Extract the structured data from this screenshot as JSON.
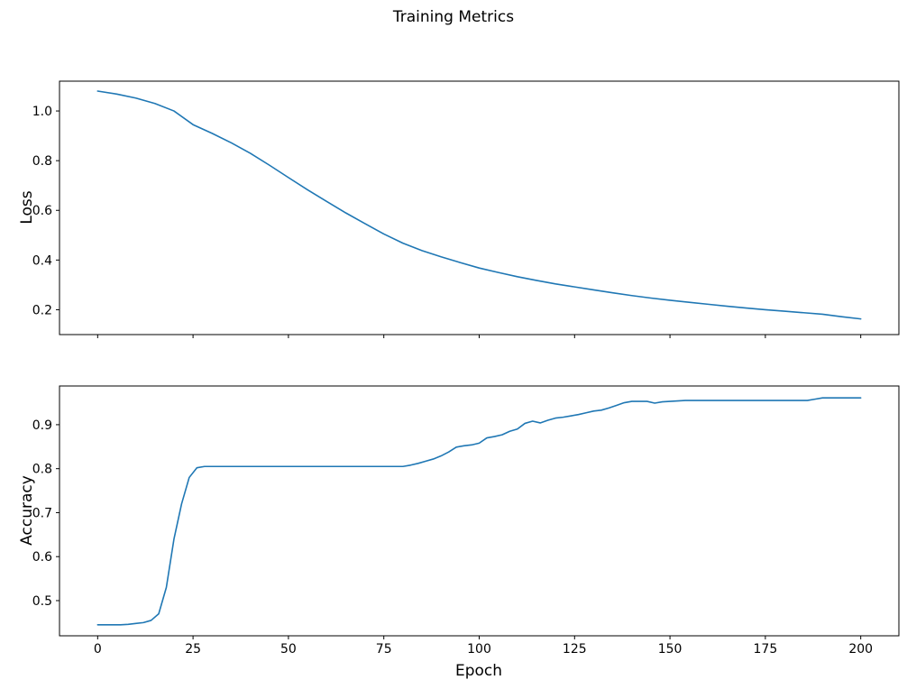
{
  "figure": {
    "title": "Training Metrics",
    "background": "#ffffff",
    "text_color": "#000000",
    "spine_color": "#000000",
    "line_color": "#1f77b4"
  },
  "chart_data": [
    {
      "type": "line",
      "name": "loss",
      "title": "",
      "xlabel": "",
      "ylabel": "Loss",
      "legend": "none",
      "grid": false,
      "line_color": "#1f77b4",
      "xlim": [
        -10,
        210
      ],
      "ylim": [
        0.1,
        1.12
      ],
      "xticks": [
        0,
        25,
        50,
        75,
        100,
        125,
        150,
        175,
        200
      ],
      "xtick_labels": [],
      "yticks": [
        0.2,
        0.4,
        0.6,
        0.8,
        1.0
      ],
      "ytick_labels": [
        "0.2",
        "0.4",
        "0.6",
        "0.8",
        "1.0"
      ],
      "x": [
        0,
        5,
        10,
        15,
        20,
        25,
        30,
        35,
        40,
        45,
        50,
        55,
        60,
        65,
        70,
        75,
        80,
        85,
        90,
        95,
        100,
        105,
        110,
        115,
        120,
        125,
        130,
        135,
        140,
        145,
        150,
        155,
        160,
        165,
        170,
        175,
        180,
        185,
        190,
        195,
        200
      ],
      "values": [
        1.08,
        1.068,
        1.052,
        1.03,
        1.0,
        0.945,
        0.91,
        0.872,
        0.83,
        0.782,
        0.732,
        0.683,
        0.636,
        0.59,
        0.547,
        0.505,
        0.468,
        0.438,
        0.413,
        0.39,
        0.368,
        0.35,
        0.333,
        0.318,
        0.304,
        0.292,
        0.28,
        0.268,
        0.257,
        0.247,
        0.238,
        0.23,
        0.222,
        0.214,
        0.207,
        0.2,
        0.194,
        0.188,
        0.182,
        0.172,
        0.163
      ]
    },
    {
      "type": "line",
      "name": "accuracy",
      "title": "",
      "xlabel": "Epoch",
      "ylabel": "Accuracy",
      "legend": "none",
      "grid": false,
      "line_color": "#1f77b4",
      "xlim": [
        -10,
        210
      ],
      "ylim": [
        0.42,
        0.988
      ],
      "xticks": [
        0,
        25,
        50,
        75,
        100,
        125,
        150,
        175,
        200
      ],
      "xtick_labels": [
        "0",
        "25",
        "50",
        "75",
        "100",
        "125",
        "150",
        "175",
        "200"
      ],
      "yticks": [
        0.5,
        0.6,
        0.7,
        0.8,
        0.9
      ],
      "ytick_labels": [
        "0.5",
        "0.6",
        "0.7",
        "0.8",
        "0.9"
      ],
      "x": [
        0,
        2,
        4,
        6,
        8,
        10,
        12,
        14,
        16,
        18,
        20,
        22,
        24,
        26,
        28,
        30,
        32,
        34,
        36,
        38,
        40,
        42,
        44,
        46,
        48,
        50,
        52,
        54,
        56,
        58,
        60,
        62,
        64,
        66,
        68,
        70,
        72,
        74,
        76,
        78,
        80,
        82,
        84,
        86,
        88,
        90,
        92,
        94,
        96,
        98,
        100,
        102,
        104,
        106,
        108,
        110,
        112,
        114,
        116,
        118,
        120,
        122,
        124,
        126,
        128,
        130,
        132,
        134,
        136,
        138,
        140,
        142,
        144,
        146,
        148,
        150,
        152,
        154,
        156,
        158,
        160,
        162,
        164,
        166,
        168,
        170,
        172,
        174,
        176,
        178,
        180,
        182,
        184,
        186,
        188,
        190,
        192,
        194,
        196,
        198,
        200
      ],
      "values": [
        0.445,
        0.445,
        0.445,
        0.445,
        0.446,
        0.448,
        0.45,
        0.455,
        0.47,
        0.53,
        0.64,
        0.72,
        0.78,
        0.802,
        0.805,
        0.805,
        0.805,
        0.805,
        0.805,
        0.805,
        0.805,
        0.805,
        0.805,
        0.805,
        0.805,
        0.805,
        0.805,
        0.805,
        0.805,
        0.805,
        0.805,
        0.805,
        0.805,
        0.805,
        0.805,
        0.805,
        0.805,
        0.805,
        0.805,
        0.805,
        0.805,
        0.808,
        0.812,
        0.817,
        0.822,
        0.829,
        0.838,
        0.849,
        0.852,
        0.854,
        0.858,
        0.87,
        0.873,
        0.877,
        0.885,
        0.89,
        0.903,
        0.908,
        0.904,
        0.91,
        0.915,
        0.917,
        0.92,
        0.923,
        0.927,
        0.931,
        0.933,
        0.938,
        0.944,
        0.95,
        0.953,
        0.953,
        0.953,
        0.949,
        0.952,
        0.953,
        0.954,
        0.955,
        0.955,
        0.955,
        0.955,
        0.955,
        0.955,
        0.955,
        0.955,
        0.955,
        0.955,
        0.955,
        0.955,
        0.955,
        0.955,
        0.955,
        0.955,
        0.955,
        0.958,
        0.961,
        0.961,
        0.961,
        0.961,
        0.961,
        0.961
      ]
    }
  ]
}
